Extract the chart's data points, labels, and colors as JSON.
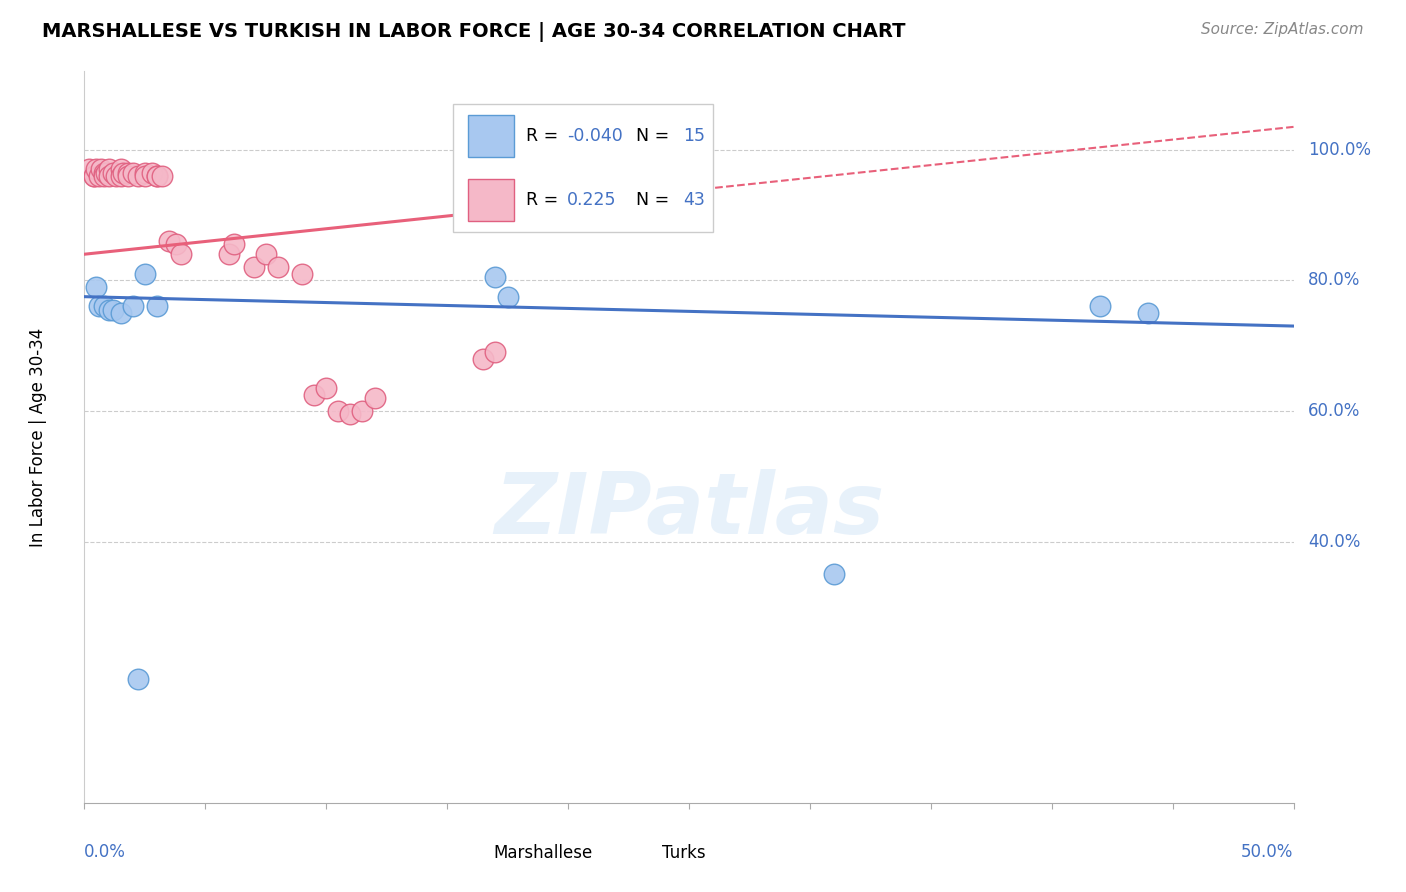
{
  "title": "MARSHALLESE VS TURKISH IN LABOR FORCE | AGE 30-34 CORRELATION CHART",
  "source": "Source: ZipAtlas.com",
  "ylabel": "In Labor Force | Age 30-34",
  "ytick_labels": [
    "100.0%",
    "80.0%",
    "60.0%",
    "40.0%"
  ],
  "ytick_values": [
    1.0,
    0.8,
    0.6,
    0.4
  ],
  "xmin": 0.0,
  "xmax": 0.5,
  "ymin": 0.0,
  "ymax": 1.12,
  "r_marshallese": -0.04,
  "n_marshallese": 15,
  "r_turks": 0.225,
  "n_turks": 43,
  "color_marshallese_fill": "#a8c8f0",
  "color_marshallese_edge": "#5b9bd5",
  "color_turks_fill": "#f5b8c8",
  "color_turks_edge": "#e06080",
  "color_blue_line": "#4472c4",
  "color_pink_line": "#e8607a",
  "color_axis_label": "#4472c4",
  "watermark": "ZIPatlas",
  "blue_line_y0": 0.775,
  "blue_line_y1": 0.73,
  "pink_line_y0": 0.84,
  "pink_line_y1": 1.035,
  "marshallese_x": [
    0.005,
    0.006,
    0.008,
    0.01,
    0.012,
    0.015,
    0.02,
    0.022,
    0.025,
    0.03,
    0.17,
    0.175,
    0.31,
    0.42,
    0.44
  ],
  "marshallese_y": [
    0.79,
    0.76,
    0.76,
    0.755,
    0.755,
    0.75,
    0.76,
    0.19,
    0.81,
    0.76,
    0.805,
    0.775,
    0.35,
    0.76,
    0.75
  ],
  "turks_x": [
    0.002,
    0.004,
    0.004,
    0.005,
    0.006,
    0.007,
    0.008,
    0.008,
    0.009,
    0.01,
    0.01,
    0.012,
    0.013,
    0.015,
    0.015,
    0.016,
    0.018,
    0.018,
    0.02,
    0.022,
    0.025,
    0.025,
    0.028,
    0.03,
    0.03,
    0.032,
    0.035,
    0.038,
    0.04,
    0.06,
    0.062,
    0.07,
    0.075,
    0.08,
    0.09,
    0.095,
    0.1,
    0.105,
    0.11,
    0.115,
    0.12,
    0.165,
    0.17
  ],
  "turks_y": [
    0.97,
    0.96,
    0.96,
    0.97,
    0.96,
    0.97,
    0.965,
    0.96,
    0.965,
    0.97,
    0.96,
    0.965,
    0.96,
    0.97,
    0.96,
    0.965,
    0.965,
    0.96,
    0.965,
    0.96,
    0.965,
    0.96,
    0.965,
    0.96,
    0.96,
    0.96,
    0.86,
    0.855,
    0.84,
    0.84,
    0.855,
    0.82,
    0.84,
    0.82,
    0.81,
    0.625,
    0.635,
    0.6,
    0.595,
    0.6,
    0.62,
    0.68,
    0.69
  ]
}
